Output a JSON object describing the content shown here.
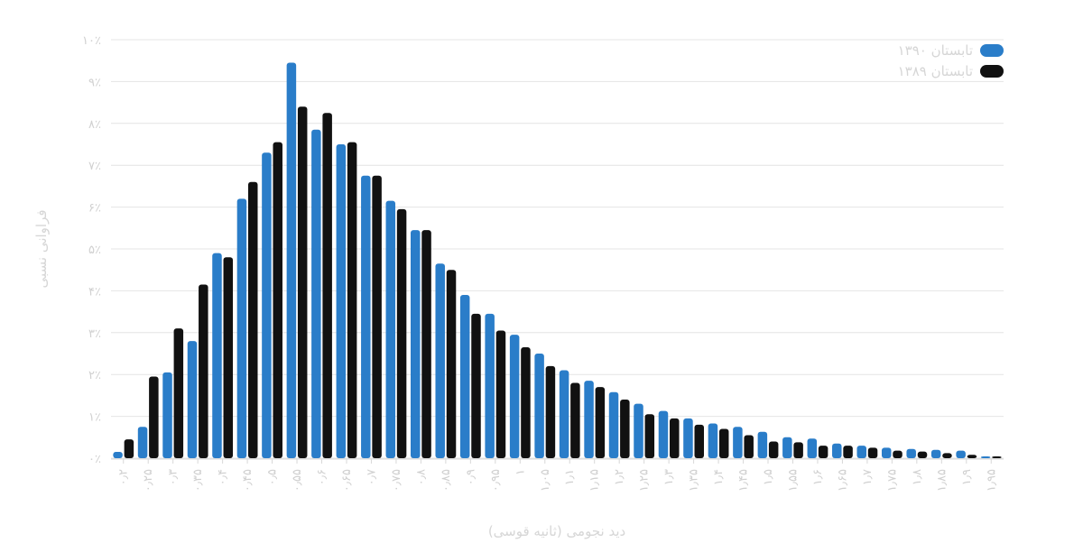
{
  "chart_data": {
    "type": "bar",
    "title": "",
    "xlabel": "دید نجومی (ثانیه قوسی)",
    "ylabel": "فراوانی نسبی",
    "ylim": [
      0,
      10
    ],
    "y_tick_labels": [
      "۰٪",
      "۱٪",
      "۲٪",
      "۳٪",
      "۴٪",
      "۵٪",
      "۶٪",
      "۷٪",
      "۸٪",
      "۹٪",
      "۱۰٪"
    ],
    "grid": true,
    "legend_position": "top-right",
    "categories": [
      "۰٫۲",
      "۰٫۲۵",
      "۰٫۳",
      "۰٫۳۵",
      "۰٫۴",
      "۰٫۴۵",
      "۰٫۵",
      "۰٫۵۵",
      "۰٫۶",
      "۰٫۶۵",
      "۰٫۷",
      "۰٫۷۵",
      "۰٫۸",
      "۰٫۸۵",
      "۰٫۹",
      "۰٫۹۵",
      "۱",
      "۱٫۰۵",
      "۱٫۱",
      "۱٫۱۵",
      "۱٫۲",
      "۱٫۲۵",
      "۱٫۳",
      "۱٫۳۵",
      "۱٫۴",
      "۱٫۴۵",
      "۱٫۵",
      "۱٫۵۵",
      "۱٫۶",
      "۱٫۶۵",
      "۱٫۷",
      "۱٫۷۵",
      "۱٫۸",
      "۱٫۸۵",
      "۱٫۹",
      "۱٫۹۵"
    ],
    "series": [
      {
        "name": "تابستان ۱۳۹۰",
        "color": "#2a7dc9",
        "values": [
          0.15,
          0.75,
          2.05,
          2.8,
          4.9,
          6.2,
          7.3,
          9.45,
          7.85,
          7.5,
          6.75,
          6.15,
          5.45,
          4.65,
          3.9,
          3.45,
          2.95,
          2.5,
          2.1,
          1.85,
          1.58,
          1.3,
          1.13,
          0.95,
          0.83,
          0.75,
          0.63,
          0.5,
          0.47,
          0.35,
          0.3,
          0.25,
          0.22,
          0.2,
          0.18,
          0.01
        ]
      },
      {
        "name": "تابستان ۱۳۸۹",
        "color": "#111111",
        "values": [
          0.45,
          1.95,
          3.1,
          4.15,
          4.8,
          6.6,
          7.55,
          8.4,
          8.25,
          7.55,
          6.75,
          5.95,
          5.45,
          4.5,
          3.45,
          3.05,
          2.65,
          2.2,
          1.8,
          1.7,
          1.4,
          1.05,
          0.95,
          0.8,
          0.7,
          0.55,
          0.4,
          0.38,
          0.3,
          0.3,
          0.25,
          0.18,
          0.16,
          0.12,
          0.08,
          0.01
        ]
      }
    ]
  }
}
